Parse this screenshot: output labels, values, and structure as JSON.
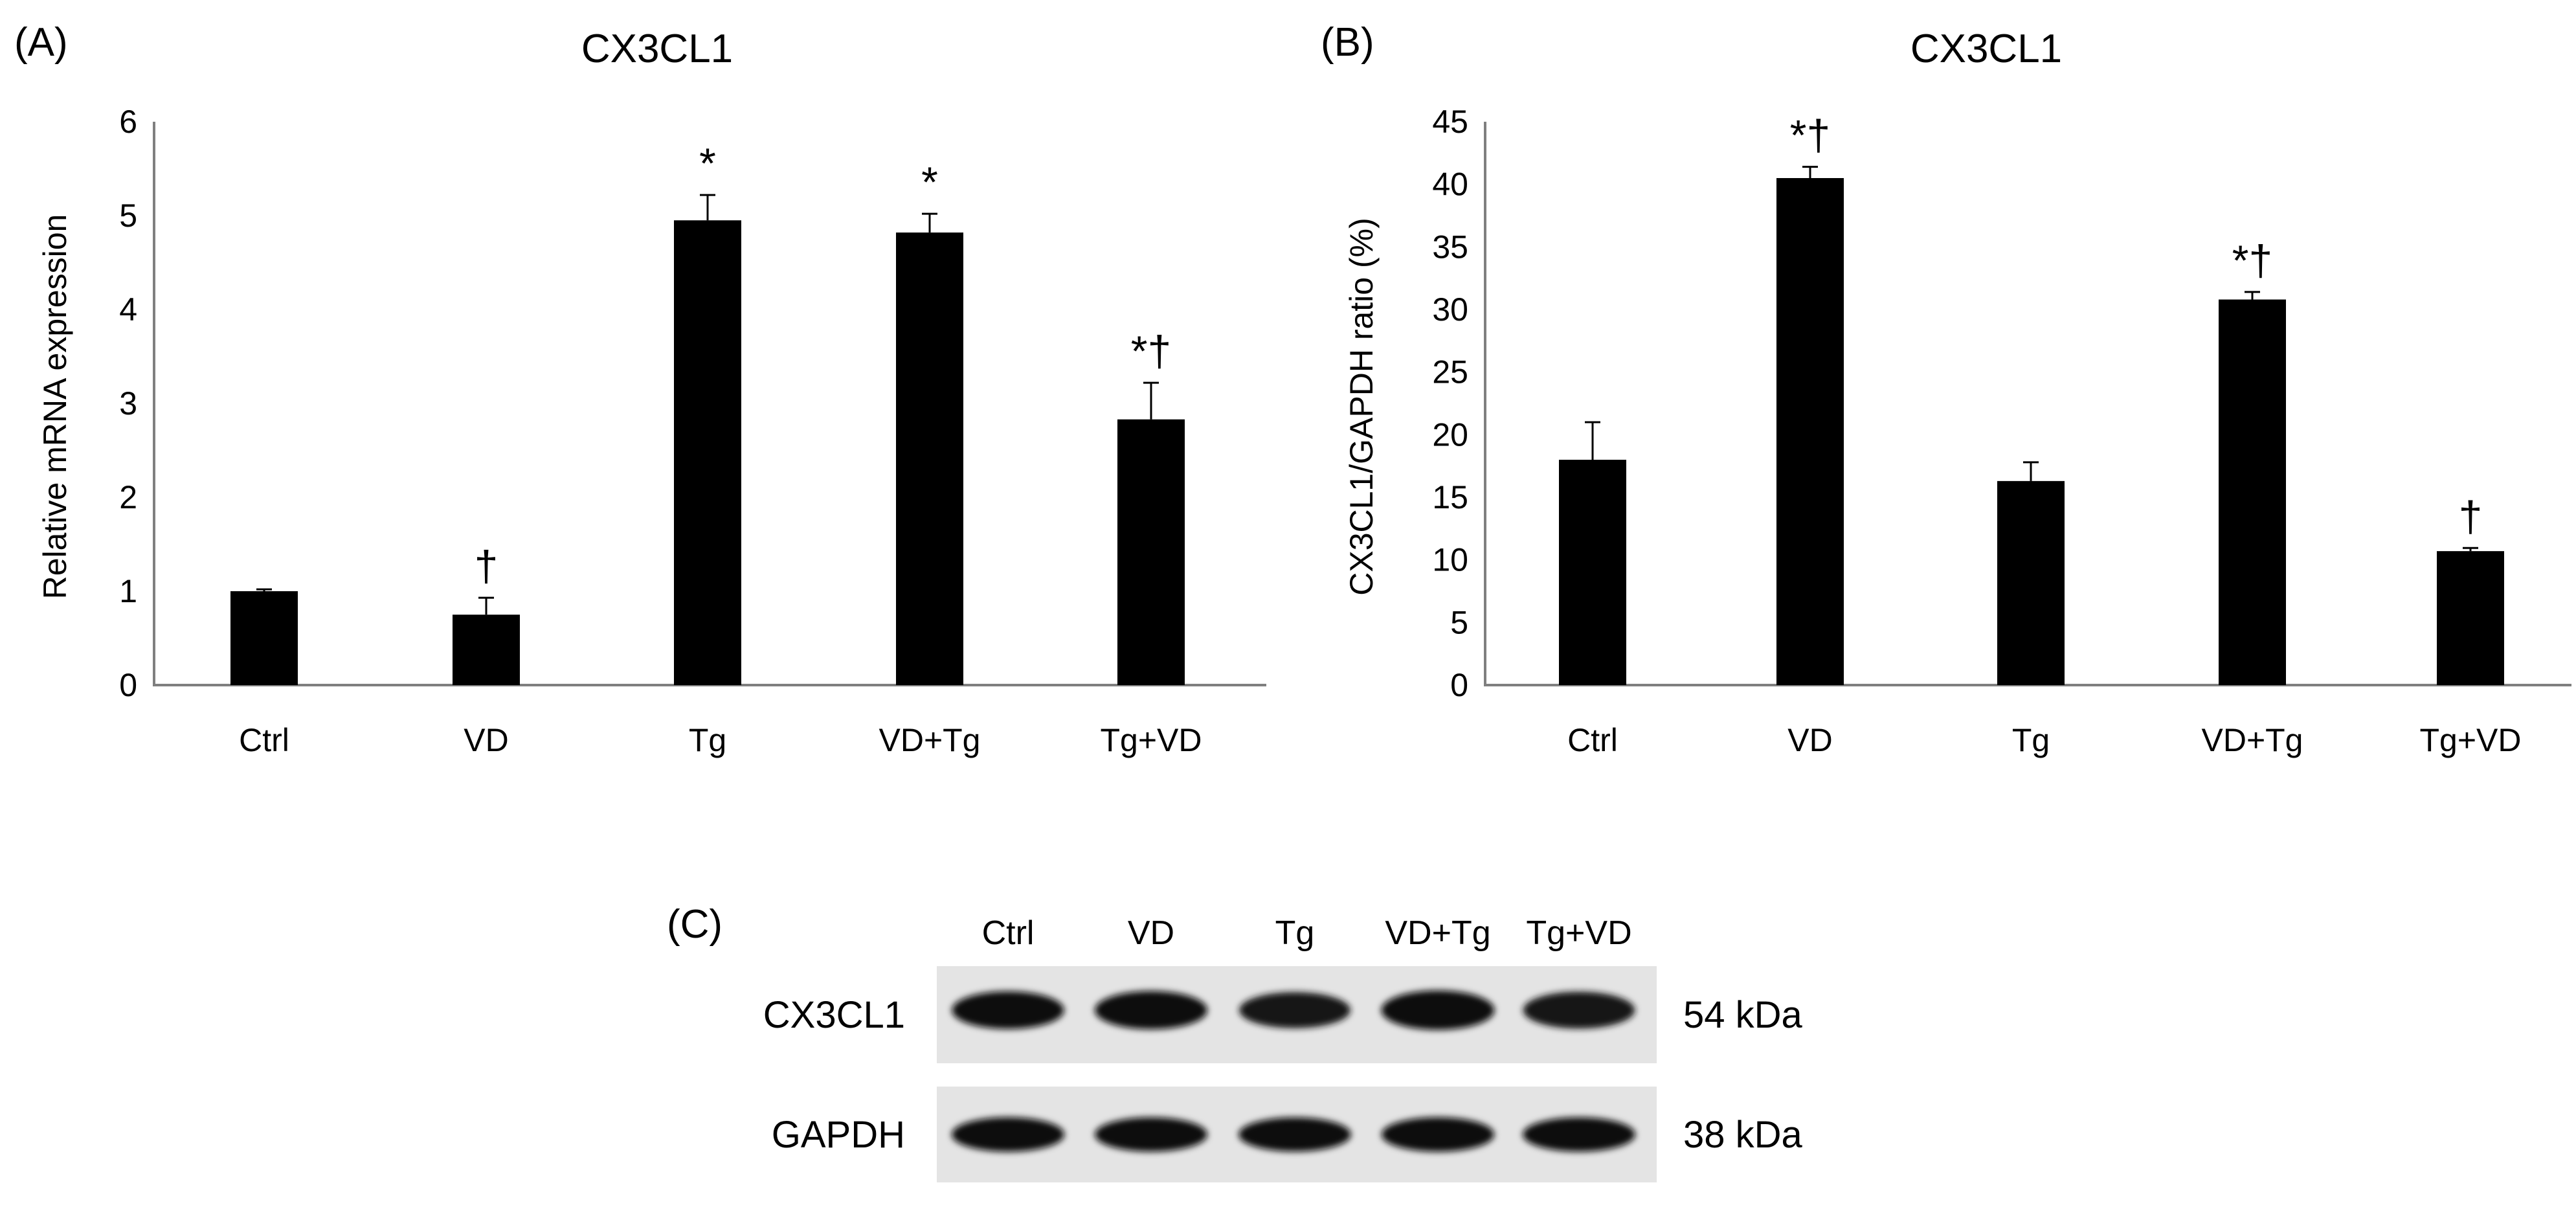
{
  "chart_data": [
    {
      "panel_label": "(A)",
      "type": "bar",
      "title": "CX3CL1",
      "xlabel": "",
      "ylabel": "Relative mRNA expression",
      "ylim": [
        0,
        6
      ],
      "yticks": [
        0,
        1,
        2,
        3,
        4,
        5,
        6
      ],
      "categories": [
        "Ctrl",
        "VD",
        "Tg",
        "VD+Tg",
        "Tg+VD"
      ],
      "values": [
        1.0,
        0.75,
        4.95,
        4.82,
        2.83
      ],
      "errors": [
        0.02,
        0.18,
        0.27,
        0.2,
        0.39
      ],
      "annotations": [
        "",
        "†",
        "*",
        "*",
        "*†"
      ],
      "bar_color": "#000000",
      "grid": false,
      "legend": "none"
    },
    {
      "panel_label": "(B)",
      "type": "bar",
      "title": "CX3CL1",
      "xlabel": "",
      "ylabel": "CX3CL1/GAPDH ratio (%)",
      "ylim": [
        0,
        45
      ],
      "yticks": [
        0,
        5,
        10,
        15,
        20,
        25,
        30,
        35,
        40,
        45
      ],
      "categories": [
        "Ctrl",
        "VD",
        "Tg",
        "VD+Tg",
        "Tg+VD"
      ],
      "values": [
        18.0,
        40.5,
        16.3,
        30.8,
        10.7
      ],
      "errors": [
        3.0,
        0.9,
        1.5,
        0.6,
        0.25
      ],
      "annotations": [
        "",
        "*†",
        "",
        "*†",
        "†"
      ],
      "bar_color": "#000000",
      "grid": false,
      "legend": "none"
    }
  ],
  "blot": {
    "panel_label": "(C)",
    "lanes": [
      "Ctrl",
      "VD",
      "Tg",
      "VD+Tg",
      "Tg+VD"
    ],
    "rows": [
      {
        "name": "CX3CL1",
        "size": "54 kDa",
        "intensity": [
          0.85,
          0.9,
          0.7,
          1.0,
          0.78
        ]
      },
      {
        "name": "GAPDH",
        "size": "38 kDa",
        "intensity": [
          0.92,
          0.9,
          0.88,
          0.92,
          0.9
        ]
      }
    ]
  }
}
